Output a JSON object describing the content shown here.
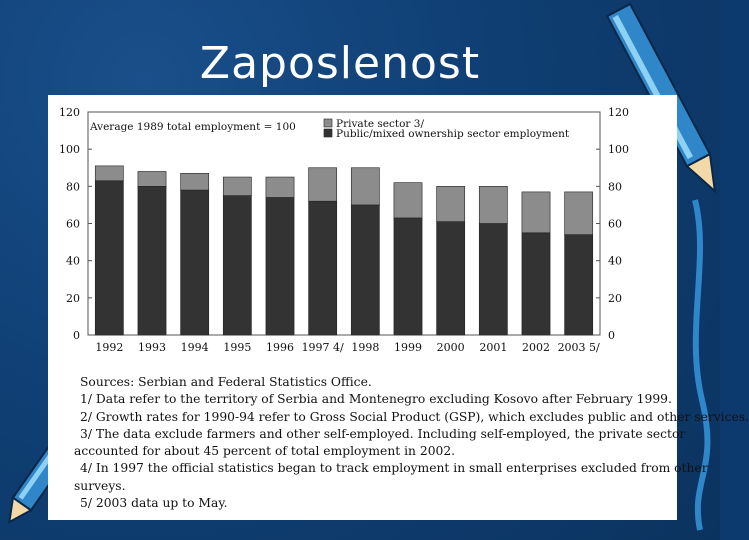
{
  "slide": {
    "title": "Zaposlenost",
    "accent_colors": {
      "background": "#0d3a6e",
      "pencil": "#3f9ad8"
    }
  },
  "chart_data": {
    "type": "bar",
    "stacked": true,
    "categories": [
      "1992",
      "1993",
      "1994",
      "1995",
      "1996",
      "1997 4/",
      "1998",
      "1999",
      "2000",
      "2001",
      "2002",
      "2003 5/"
    ],
    "series": [
      {
        "name": "Public/mixed ownership sector employment",
        "color": "#333333",
        "values": [
          83,
          80,
          78,
          75,
          74,
          72,
          70,
          63,
          61,
          60,
          55,
          54
        ]
      },
      {
        "name": "Private sector 3/",
        "color": "#8c8c8c",
        "values": [
          8,
          8,
          9,
          10,
          11,
          18,
          20,
          19,
          19,
          20,
          22,
          23
        ]
      }
    ],
    "annotation": "Average 1989 total employment = 100",
    "ylim": [
      0,
      120
    ],
    "yticks": [
      0,
      20,
      40,
      60,
      80,
      100,
      120
    ],
    "legend_position": "top-right",
    "grid": false
  },
  "notes": [
    "Sources: Serbian and Federal Statistics Office.",
    "1/ Data refer to the territory of Serbia and Montenegro excluding Kosovo after February 1999.",
    "2/ Growth rates for 1990-94 refer to Gross Social Product (GSP), which excludes public and other services.",
    "3/ The data exclude farmers and other self-employed. Including self-employed, the private sector",
    "accounted for about 45 percent of total employment in 2002.",
    "4/ In 1997 the official statistics began to track employment in small enterprises excluded from other",
    "surveys.",
    "5/ 2003 data up to May."
  ]
}
